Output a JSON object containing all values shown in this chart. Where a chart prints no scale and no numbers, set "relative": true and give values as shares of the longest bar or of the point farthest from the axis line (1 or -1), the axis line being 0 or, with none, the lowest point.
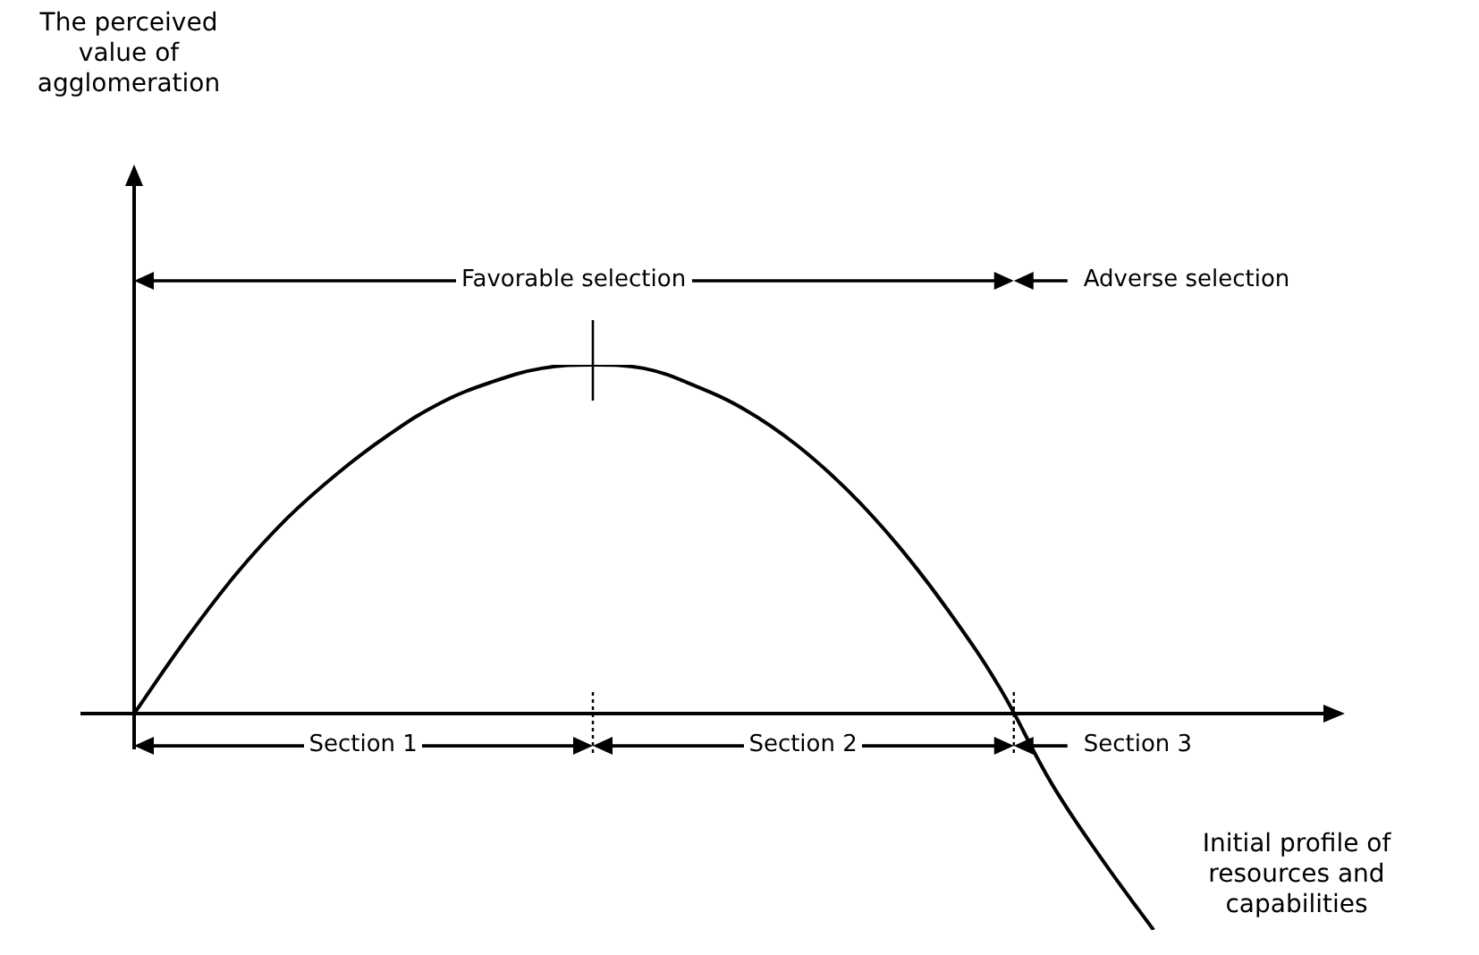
{
  "chart_data": {
    "type": "line",
    "relative": true,
    "xlabel": "Initial profile of resources and capabilities",
    "categories": [
      null,
      null,
      null,
      null,
      null,
      null,
      null,
      null,
      null,
      null,
      null,
      null,
      null,
      null,
      null,
      null,
      null,
      null,
      null,
      null,
      null
    ],
    "series": [
      {
        "color": "#000000",
        "values": [
          0,
          0.21,
          0.4,
          0.56,
          0.69,
          0.8,
          0.89,
          0.95,
          0.99,
          1,
          0.99,
          0.94,
          0.87,
          0.77,
          0.64,
          0.48,
          0.29,
          0.07,
          -0.2,
          -0.42,
          -0.62
        ]
      }
    ],
    "annotations": [
      "The perceived value of agglomeration",
      "Favorable selection",
      "Adverse selection",
      "Section 1",
      "Section 2",
      "Section 3"
    ],
    "marker": "none",
    "line_style": "solid",
    "legend": false
  }
}
